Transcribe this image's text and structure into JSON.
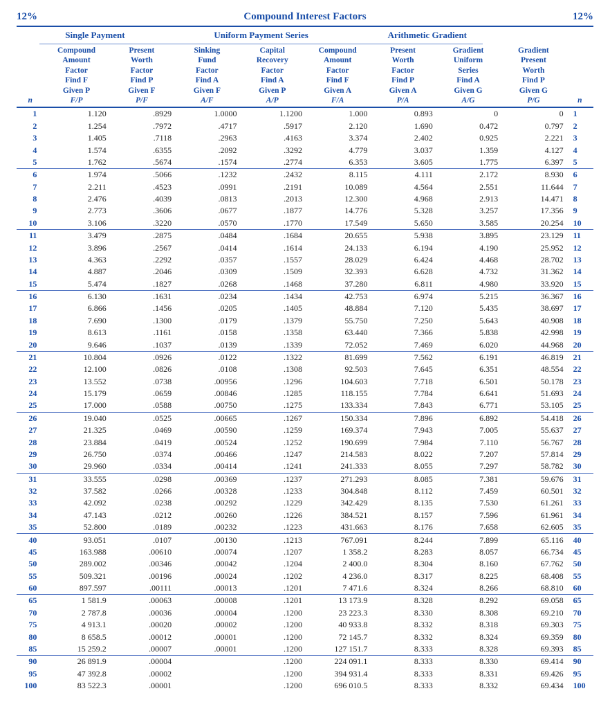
{
  "rate_label": "12%",
  "title": "Compound Interest Factors",
  "groups": [
    "Single Payment",
    "Uniform Payment Series",
    "Arithmetic Gradient"
  ],
  "n_label": "n",
  "columns": [
    {
      "l1": "Compound",
      "l2": "Amount",
      "l3": "Factor",
      "l4": "Find F",
      "l5": "Given P",
      "sym": "F/P"
    },
    {
      "l1": "Present",
      "l2": "Worth",
      "l3": "Factor",
      "l4": "Find P",
      "l5": "Given F",
      "sym": "P/F"
    },
    {
      "l1": "Sinking",
      "l2": "Fund",
      "l3": "Factor",
      "l4": "Find A",
      "l5": "Given F",
      "sym": "A/F"
    },
    {
      "l1": "Capital",
      "l2": "Recovery",
      "l3": "Factor",
      "l4": "Find A",
      "l5": "Given P",
      "sym": "A/P"
    },
    {
      "l1": "Compound",
      "l2": "Amount",
      "l3": "Factor",
      "l4": "Find F",
      "l5": "Given A",
      "sym": "F/A"
    },
    {
      "l1": "Present",
      "l2": "Worth",
      "l3": "Factor",
      "l4": "Find P",
      "l5": "Given A",
      "sym": "P/A"
    },
    {
      "l1": "Gradient",
      "l2": "Uniform",
      "l3": "Series",
      "l4": "Find A",
      "l5": "Given G",
      "sym": "A/G"
    },
    {
      "l1": "Gradient",
      "l2": "Present",
      "l3": "Worth",
      "l4": "Find P",
      "l5": "Given G",
      "sym": "P/G"
    }
  ],
  "color_heading": "#1a4ea8",
  "color_rule": "#1a4ea8",
  "color_body": "#222222",
  "breaks_after": [
    5,
    10,
    15,
    20,
    25,
    30,
    35,
    60,
    85
  ],
  "rows": [
    {
      "n": "1",
      "v": [
        "1.120",
        ".8929",
        "1.0000",
        "1.1200",
        "1.000",
        "0.893",
        "0",
        "0"
      ]
    },
    {
      "n": "2",
      "v": [
        "1.254",
        ".7972",
        ".4717",
        ".5917",
        "2.120",
        "1.690",
        "0.472",
        "0.797"
      ]
    },
    {
      "n": "3",
      "v": [
        "1.405",
        ".7118",
        ".2963",
        ".4163",
        "3.374",
        "2.402",
        "0.925",
        "2.221"
      ]
    },
    {
      "n": "4",
      "v": [
        "1.574",
        ".6355",
        ".2092",
        ".3292",
        "4.779",
        "3.037",
        "1.359",
        "4.127"
      ]
    },
    {
      "n": "5",
      "v": [
        "1.762",
        ".5674",
        ".1574",
        ".2774",
        "6.353",
        "3.605",
        "1.775",
        "6.397"
      ]
    },
    {
      "n": "6",
      "v": [
        "1.974",
        ".5066",
        ".1232",
        ".2432",
        "8.115",
        "4.111",
        "2.172",
        "8.930"
      ]
    },
    {
      "n": "7",
      "v": [
        "2.211",
        ".4523",
        ".0991",
        ".2191",
        "10.089",
        "4.564",
        "2.551",
        "11.644"
      ]
    },
    {
      "n": "8",
      "v": [
        "2.476",
        ".4039",
        ".0813",
        ".2013",
        "12.300",
        "4.968",
        "2.913",
        "14.471"
      ]
    },
    {
      "n": "9",
      "v": [
        "2.773",
        ".3606",
        ".0677",
        ".1877",
        "14.776",
        "5.328",
        "3.257",
        "17.356"
      ]
    },
    {
      "n": "10",
      "v": [
        "3.106",
        ".3220",
        ".0570",
        ".1770",
        "17.549",
        "5.650",
        "3.585",
        "20.254"
      ]
    },
    {
      "n": "11",
      "v": [
        "3.479",
        ".2875",
        ".0484",
        ".1684",
        "20.655",
        "5.938",
        "3.895",
        "23.129"
      ]
    },
    {
      "n": "12",
      "v": [
        "3.896",
        ".2567",
        ".0414",
        ".1614",
        "24.133",
        "6.194",
        "4.190",
        "25.952"
      ]
    },
    {
      "n": "13",
      "v": [
        "4.363",
        ".2292",
        ".0357",
        ".1557",
        "28.029",
        "6.424",
        "4.468",
        "28.702"
      ]
    },
    {
      "n": "14",
      "v": [
        "4.887",
        ".2046",
        ".0309",
        ".1509",
        "32.393",
        "6.628",
        "4.732",
        "31.362"
      ]
    },
    {
      "n": "15",
      "v": [
        "5.474",
        ".1827",
        ".0268",
        ".1468",
        "37.280",
        "6.811",
        "4.980",
        "33.920"
      ]
    },
    {
      "n": "16",
      "v": [
        "6.130",
        ".1631",
        ".0234",
        ".1434",
        "42.753",
        "6.974",
        "5.215",
        "36.367"
      ]
    },
    {
      "n": "17",
      "v": [
        "6.866",
        ".1456",
        ".0205",
        ".1405",
        "48.884",
        "7.120",
        "5.435",
        "38.697"
      ]
    },
    {
      "n": "18",
      "v": [
        "7.690",
        ".1300",
        ".0179",
        ".1379",
        "55.750",
        "7.250",
        "5.643",
        "40.908"
      ]
    },
    {
      "n": "19",
      "v": [
        "8.613",
        ".1161",
        ".0158",
        ".1358",
        "63.440",
        "7.366",
        "5.838",
        "42.998"
      ]
    },
    {
      "n": "20",
      "v": [
        "9.646",
        ".1037",
        ".0139",
        ".1339",
        "72.052",
        "7.469",
        "6.020",
        "44.968"
      ]
    },
    {
      "n": "21",
      "v": [
        "10.804",
        ".0926",
        ".0122",
        ".1322",
        "81.699",
        "7.562",
        "6.191",
        "46.819"
      ]
    },
    {
      "n": "22",
      "v": [
        "12.100",
        ".0826",
        ".0108",
        ".1308",
        "92.503",
        "7.645",
        "6.351",
        "48.554"
      ]
    },
    {
      "n": "23",
      "v": [
        "13.552",
        ".0738",
        ".00956",
        ".1296",
        "104.603",
        "7.718",
        "6.501",
        "50.178"
      ]
    },
    {
      "n": "24",
      "v": [
        "15.179",
        ".0659",
        ".00846",
        ".1285",
        "118.155",
        "7.784",
        "6.641",
        "51.693"
      ]
    },
    {
      "n": "25",
      "v": [
        "17.000",
        ".0588",
        ".00750",
        ".1275",
        "133.334",
        "7.843",
        "6.771",
        "53.105"
      ]
    },
    {
      "n": "26",
      "v": [
        "19.040",
        ".0525",
        ".00665",
        ".1267",
        "150.334",
        "7.896",
        "6.892",
        "54.418"
      ]
    },
    {
      "n": "27",
      "v": [
        "21.325",
        ".0469",
        ".00590",
        ".1259",
        "169.374",
        "7.943",
        "7.005",
        "55.637"
      ]
    },
    {
      "n": "28",
      "v": [
        "23.884",
        ".0419",
        ".00524",
        ".1252",
        "190.699",
        "7.984",
        "7.110",
        "56.767"
      ]
    },
    {
      "n": "29",
      "v": [
        "26.750",
        ".0374",
        ".00466",
        ".1247",
        "214.583",
        "8.022",
        "7.207",
        "57.814"
      ]
    },
    {
      "n": "30",
      "v": [
        "29.960",
        ".0334",
        ".00414",
        ".1241",
        "241.333",
        "8.055",
        "7.297",
        "58.782"
      ]
    },
    {
      "n": "31",
      "v": [
        "33.555",
        ".0298",
        ".00369",
        ".1237",
        "271.293",
        "8.085",
        "7.381",
        "59.676"
      ]
    },
    {
      "n": "32",
      "v": [
        "37.582",
        ".0266",
        ".00328",
        ".1233",
        "304.848",
        "8.112",
        "7.459",
        "60.501"
      ]
    },
    {
      "n": "33",
      "v": [
        "42.092",
        ".0238",
        ".00292",
        ".1229",
        "342.429",
        "8.135",
        "7.530",
        "61.261"
      ]
    },
    {
      "n": "34",
      "v": [
        "47.143",
        ".0212",
        ".00260",
        ".1226",
        "384.521",
        "8.157",
        "7.596",
        "61.961"
      ]
    },
    {
      "n": "35",
      "v": [
        "52.800",
        ".0189",
        ".00232",
        ".1223",
        "431.663",
        "8.176",
        "7.658",
        "62.605"
      ]
    },
    {
      "n": "40",
      "v": [
        "93.051",
        ".0107",
        ".00130",
        ".1213",
        "767.091",
        "8.244",
        "7.899",
        "65.116"
      ]
    },
    {
      "n": "45",
      "v": [
        "163.988",
        ".00610",
        ".00074",
        ".1207",
        "1 358.2",
        "8.283",
        "8.057",
        "66.734"
      ]
    },
    {
      "n": "50",
      "v": [
        "289.002",
        ".00346",
        ".00042",
        ".1204",
        "2 400.0",
        "8.304",
        "8.160",
        "67.762"
      ]
    },
    {
      "n": "55",
      "v": [
        "509.321",
        ".00196",
        ".00024",
        ".1202",
        "4 236.0",
        "8.317",
        "8.225",
        "68.408"
      ]
    },
    {
      "n": "60",
      "v": [
        "897.597",
        ".00111",
        ".00013",
        ".1201",
        "7 471.6",
        "8.324",
        "8.266",
        "68.810"
      ]
    },
    {
      "n": "65",
      "v": [
        "1 581.9",
        ".00063",
        ".00008",
        ".1201",
        "13 173.9",
        "8.328",
        "8.292",
        "69.058"
      ]
    },
    {
      "n": "70",
      "v": [
        "2 787.8",
        ".00036",
        ".00004",
        ".1200",
        "23 223.3",
        "8.330",
        "8.308",
        "69.210"
      ]
    },
    {
      "n": "75",
      "v": [
        "4 913.1",
        ".00020",
        ".00002",
        ".1200",
        "40 933.8",
        "8.332",
        "8.318",
        "69.303"
      ]
    },
    {
      "n": "80",
      "v": [
        "8 658.5",
        ".00012",
        ".00001",
        ".1200",
        "72 145.7",
        "8.332",
        "8.324",
        "69.359"
      ]
    },
    {
      "n": "85",
      "v": [
        "15 259.2",
        ".00007",
        ".00001",
        ".1200",
        "127 151.7",
        "8.333",
        "8.328",
        "69.393"
      ]
    },
    {
      "n": "90",
      "v": [
        "26 891.9",
        ".00004",
        "",
        ".1200",
        "224 091.1",
        "8.333",
        "8.330",
        "69.414"
      ]
    },
    {
      "n": "95",
      "v": [
        "47 392.8",
        ".00002",
        "",
        ".1200",
        "394 931.4",
        "8.333",
        "8.331",
        "69.426"
      ]
    },
    {
      "n": "100",
      "v": [
        "83 522.3",
        ".00001",
        "",
        ".1200",
        "696 010.5",
        "8.333",
        "8.332",
        "69.434"
      ]
    }
  ]
}
